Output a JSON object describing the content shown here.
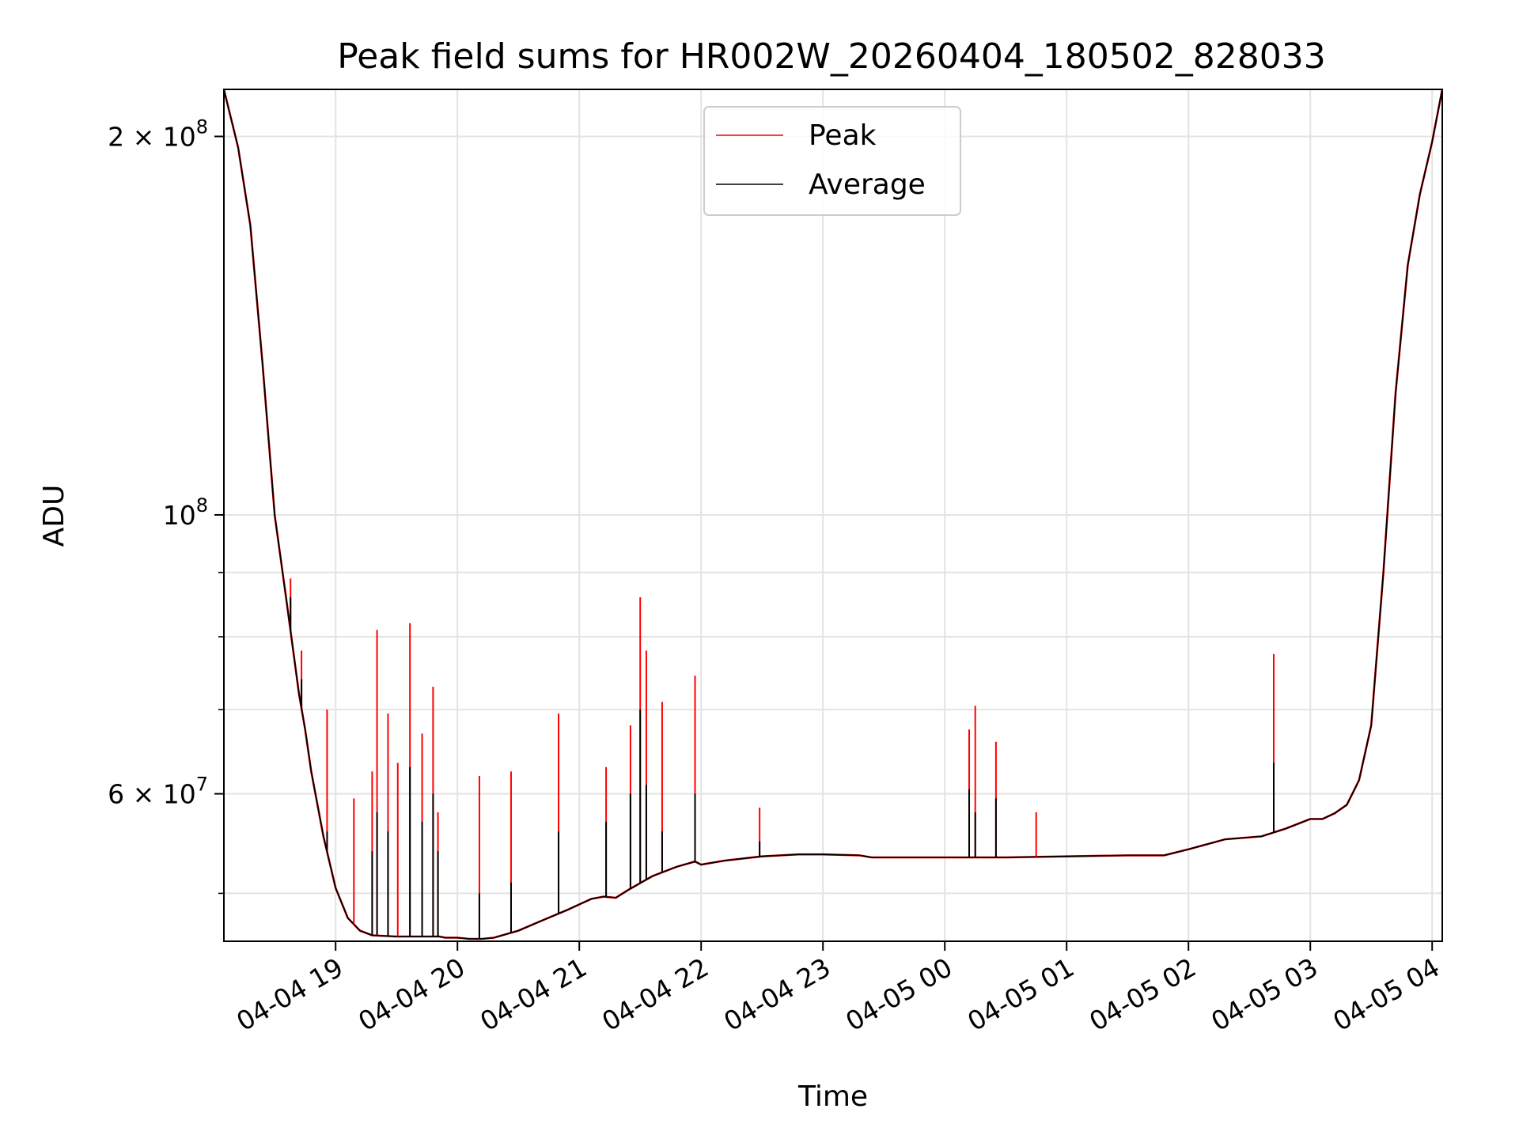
{
  "chart_data": {
    "type": "line",
    "title": "Peak field sums for HR002W_20260404_180502_828033",
    "xlabel": "Time",
    "ylabel": "ADU",
    "yscale": "log",
    "ylim": [
      45800000,
      218000000
    ],
    "xlim": [
      18.083,
      28.083
    ],
    "grid": true,
    "legend_position": "top-center",
    "x_unit": "hours since 2026-04-04 00:00",
    "x_ticks": [
      {
        "value": 19,
        "label": "04-04 19"
      },
      {
        "value": 20,
        "label": "04-04 20"
      },
      {
        "value": 21,
        "label": "04-04 21"
      },
      {
        "value": 22,
        "label": "04-04 22"
      },
      {
        "value": 23,
        "label": "04-04 23"
      },
      {
        "value": 24,
        "label": "04-05 00"
      },
      {
        "value": 25,
        "label": "04-05 01"
      },
      {
        "value": 26,
        "label": "04-05 02"
      },
      {
        "value": 27,
        "label": "04-05 03"
      },
      {
        "value": 28,
        "label": "04-05 04"
      }
    ],
    "y_ticks": [
      {
        "value": 200000000,
        "base": "2 × 10",
        "exp": "8"
      },
      {
        "value": 100000000,
        "base": "10",
        "exp": "8"
      },
      {
        "value": 60000000,
        "base": "6 × 10",
        "exp": "7"
      }
    ],
    "y_minor_ticks": [
      50000000,
      70000000,
      80000000,
      90000000
    ],
    "series": [
      {
        "name": "Peak",
        "color": "#ff0000",
        "spikes": [
          [
            18.63,
            89000000
          ],
          [
            18.72,
            78000000
          ],
          [
            18.93,
            70000000
          ],
          [
            19.15,
            59500000
          ],
          [
            19.3,
            62500000
          ],
          [
            19.34,
            81000000
          ],
          [
            19.43,
            69500000
          ],
          [
            19.51,
            63500000
          ],
          [
            19.61,
            82000000
          ],
          [
            19.71,
            67000000
          ],
          [
            19.8,
            73000000
          ],
          [
            19.84,
            58000000
          ],
          [
            20.18,
            62000000
          ],
          [
            20.44,
            62500000
          ],
          [
            20.83,
            69500000
          ],
          [
            21.22,
            63000000
          ],
          [
            21.42,
            68000000
          ],
          [
            21.5,
            86000000
          ],
          [
            21.55,
            78000000
          ],
          [
            21.68,
            71000000
          ],
          [
            21.95,
            74500000
          ],
          [
            22.48,
            58500000
          ],
          [
            24.2,
            67500000
          ],
          [
            24.25,
            70500000
          ],
          [
            24.42,
            66000000
          ],
          [
            24.75,
            58000000
          ],
          [
            26.7,
            77500000
          ]
        ]
      },
      {
        "name": "Average",
        "color": "#000000",
        "x": [
          18.083,
          18.2,
          18.3,
          18.4,
          18.5,
          18.6,
          18.7,
          18.75,
          18.8,
          18.9,
          19.0,
          19.1,
          19.2,
          19.3,
          19.5,
          19.7,
          19.85,
          19.9,
          20.0,
          20.1,
          20.2,
          20.3,
          20.5,
          20.7,
          20.9,
          21.0,
          21.1,
          21.2,
          21.3,
          21.4,
          21.6,
          21.8,
          21.95,
          22.0,
          22.2,
          22.5,
          22.8,
          23.0,
          23.3,
          23.4,
          24.0,
          24.5,
          25.0,
          25.5,
          25.8,
          26.0,
          26.3,
          26.6,
          26.8,
          27.0,
          27.1,
          27.2,
          27.3,
          27.4,
          27.5,
          27.6,
          27.7,
          27.8,
          27.9,
          28.0,
          28.083
        ],
        "y": [
          218000000,
          196000000,
          170000000,
          132000000,
          100000000,
          85000000,
          72000000,
          67500000,
          62500000,
          55500000,
          50500000,
          47800000,
          46700000,
          46300000,
          46200000,
          46200000,
          46200000,
          46100000,
          46100000,
          46000000,
          46000000,
          46100000,
          46700000,
          47600000,
          48500000,
          49000000,
          49500000,
          49700000,
          49600000,
          50300000,
          51600000,
          52500000,
          53000000,
          52700000,
          53100000,
          53500000,
          53700000,
          53700000,
          53600000,
          53400000,
          53400000,
          53400000,
          53500000,
          53600000,
          53600000,
          54200000,
          55200000,
          55500000,
          56300000,
          57300000,
          57300000,
          57900000,
          58800000,
          61500000,
          68000000,
          90000000,
          125000000,
          158000000,
          180000000,
          198000000,
          218000000
        ],
        "spikes": [
          [
            18.63,
            86000000
          ],
          [
            18.72,
            74000000
          ],
          [
            18.93,
            56000000
          ],
          [
            19.3,
            54000000
          ],
          [
            19.34,
            58000000
          ],
          [
            19.43,
            56000000
          ],
          [
            19.61,
            63000000
          ],
          [
            19.71,
            57000000
          ],
          [
            19.8,
            60000000
          ],
          [
            19.84,
            54000000
          ],
          [
            20.18,
            50000000
          ],
          [
            20.44,
            51000000
          ],
          [
            20.83,
            56000000
          ],
          [
            21.22,
            57000000
          ],
          [
            21.42,
            60000000
          ],
          [
            21.5,
            70000000
          ],
          [
            21.55,
            61000000
          ],
          [
            21.68,
            56000000
          ],
          [
            21.95,
            60000000
          ],
          [
            22.48,
            55000000
          ],
          [
            24.2,
            60500000
          ],
          [
            24.25,
            58000000
          ],
          [
            24.42,
            59500000
          ],
          [
            26.7,
            63500000
          ]
        ]
      }
    ]
  }
}
